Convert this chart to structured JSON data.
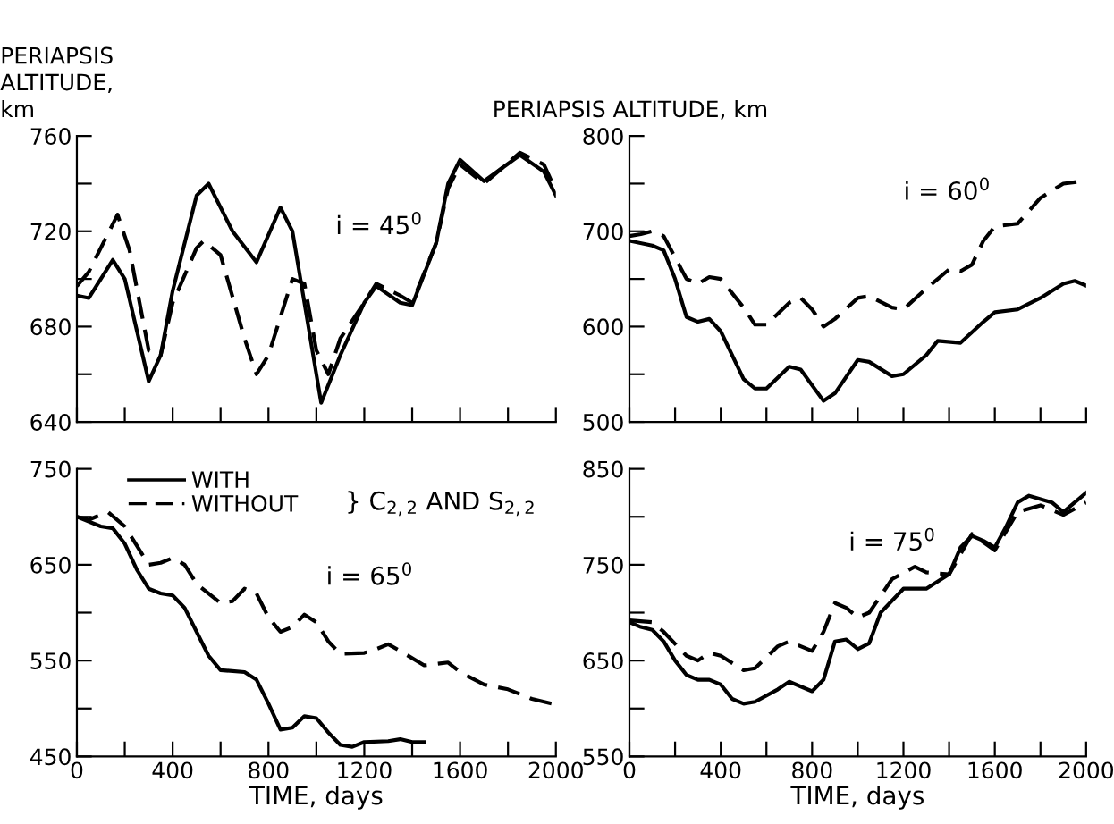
{
  "chart_data": [
    {
      "type": "line",
      "ylabel": "PERIAPSIS\nALTITUDE,\nkm",
      "annotations": [
        "i = 45$^{0}$"
      ],
      "xlim": [
        0,
        2000
      ],
      "ylim": [
        640,
        760
      ],
      "xticks": [
        0,
        200,
        400,
        600,
        800,
        1000,
        1200,
        1400,
        1600,
        1800,
        2000
      ],
      "yticks": [
        640,
        {
          "value": 660,
          "label": null
        },
        680,
        {
          "value": 700,
          "label": null
        },
        720,
        {
          "value": 740,
          "label": null
        },
        760
      ],
      "tick_labels": "y",
      "grid": false,
      "legend": false,
      "series": [
        {
          "color": "#000000",
          "line_style": "solid",
          "x": [
            0,
            50,
            150,
            200,
            300,
            350,
            400,
            500,
            550,
            650,
            750,
            850,
            900,
            1000,
            1020,
            1100,
            1200,
            1250,
            1350,
            1400,
            1500,
            1550,
            1600,
            1700,
            1850,
            1950,
            2000
          ],
          "values": [
            693,
            692,
            708,
            700,
            657,
            668,
            695,
            735,
            740,
            720,
            707,
            730,
            720,
            660,
            648,
            668,
            690,
            697,
            690,
            689,
            715,
            740,
            750,
            741,
            752,
            745,
            735
          ]
        },
        {
          "color": "#000000",
          "line_style": "dashed",
          "x": [
            0,
            50,
            170,
            220,
            300,
            350,
            400,
            500,
            530,
            600,
            700,
            750,
            800,
            900,
            950,
            1000,
            1050,
            1100,
            1200,
            1250,
            1350,
            1400,
            1500,
            1550,
            1600,
            1700,
            1850,
            1950,
            2000
          ],
          "values": [
            697,
            703,
            727,
            712,
            670,
            668,
            690,
            713,
            716,
            710,
            675,
            660,
            668,
            700,
            698,
            670,
            660,
            675,
            690,
            698,
            693,
            690,
            715,
            738,
            748,
            740,
            753,
            748,
            737
          ]
        }
      ]
    },
    {
      "type": "line",
      "ylabel": "PERIAPSIS ALTITUDE, km",
      "annotations": [
        "i = 60$^{0}$"
      ],
      "xlim": [
        0,
        2000
      ],
      "ylim": [
        500,
        800
      ],
      "xticks": [
        0,
        200,
        400,
        600,
        800,
        1000,
        1200,
        1400,
        1600,
        1800,
        2000
      ],
      "yticks": [
        500,
        {
          "value": 550,
          "label": null
        },
        600,
        {
          "value": 650,
          "label": null
        },
        700,
        {
          "value": 750,
          "label": null
        },
        800
      ],
      "tick_labels": "y",
      "grid": false,
      "legend": false,
      "series": [
        {
          "color": "#000000",
          "line_style": "solid",
          "x": [
            0,
            100,
            150,
            200,
            250,
            300,
            350,
            400,
            500,
            550,
            600,
            700,
            750,
            850,
            900,
            1000,
            1050,
            1150,
            1200,
            1300,
            1350,
            1450,
            1550,
            1600,
            1700,
            1800,
            1900,
            1950,
            2000
          ],
          "values": [
            690,
            685,
            680,
            650,
            610,
            605,
            608,
            595,
            545,
            535,
            535,
            558,
            555,
            522,
            530,
            565,
            563,
            548,
            550,
            570,
            585,
            583,
            605,
            615,
            618,
            630,
            645,
            648,
            643
          ]
        },
        {
          "color": "#000000",
          "line_style": "dashed",
          "x": [
            0,
            50,
            100,
            150,
            250,
            300,
            350,
            400,
            500,
            550,
            600,
            700,
            750,
            800,
            850,
            900,
            1000,
            1050,
            1150,
            1200,
            1300,
            1400,
            1450,
            1500,
            1550,
            1600,
            1700,
            1800,
            1900,
            2000
          ],
          "values": [
            695,
            697,
            700,
            695,
            650,
            645,
            652,
            650,
            620,
            602,
            602,
            625,
            630,
            618,
            600,
            608,
            630,
            632,
            620,
            618,
            640,
            660,
            658,
            665,
            690,
            705,
            708,
            735,
            750,
            753
          ]
        }
      ]
    },
    {
      "type": "line",
      "xlabel": "TIME, days",
      "annotations": [
        "} C$_{2,2}$ AND S$_{2,2}$",
        "i = 65$^{0}$"
      ],
      "xlim": [
        0,
        2000
      ],
      "ylim": [
        450,
        750
      ],
      "xticks": [
        0,
        {
          "value": 200,
          "label": null
        },
        400,
        {
          "value": 600,
          "label": null
        },
        800,
        {
          "value": 1000,
          "label": null
        },
        1200,
        {
          "value": 1400,
          "label": null
        },
        1600,
        {
          "value": 1800,
          "label": null
        },
        2000
      ],
      "yticks": [
        450,
        {
          "value": 500,
          "label": null
        },
        550,
        {
          "value": 600,
          "label": null
        },
        650,
        {
          "value": 700,
          "label": null
        },
        750
      ],
      "grid": false,
      "legend": "top",
      "series": [
        {
          "name": "WITH",
          "color": "#000000",
          "line_style": "solid",
          "x": [
            0,
            100,
            150,
            200,
            250,
            300,
            350,
            400,
            450,
            500,
            550,
            600,
            700,
            750,
            800,
            850,
            900,
            950,
            1000,
            1050,
            1100,
            1150,
            1200,
            1300,
            1350,
            1400,
            1450
          ],
          "values": [
            700,
            690,
            688,
            672,
            645,
            625,
            620,
            618,
            605,
            580,
            555,
            540,
            538,
            530,
            505,
            478,
            480,
            492,
            490,
            475,
            462,
            460,
            465,
            466,
            468,
            465,
            465
          ]
        },
        {
          "name": "WITHOUT",
          "color": "#000000",
          "line_style": "dashed",
          "x": [
            0,
            50,
            130,
            200,
            250,
            300,
            350,
            400,
            450,
            500,
            600,
            650,
            700,
            750,
            800,
            850,
            900,
            950,
            1000,
            1050,
            1100,
            1200,
            1250,
            1300,
            1350,
            1450,
            1550,
            1600,
            1700,
            1800,
            1900,
            2000
          ],
          "values": [
            700,
            697,
            705,
            690,
            670,
            650,
            652,
            657,
            650,
            630,
            610,
            612,
            625,
            620,
            595,
            580,
            585,
            598,
            590,
            570,
            557,
            558,
            562,
            567,
            560,
            545,
            548,
            538,
            525,
            520,
            510,
            504
          ]
        }
      ]
    },
    {
      "type": "line",
      "xlabel": "TIME, days",
      "annotations": [
        "i = 75$^{0}$"
      ],
      "xlim": [
        0,
        2000
      ],
      "ylim": [
        550,
        850
      ],
      "xticks": [
        0,
        {
          "value": 200,
          "label": null
        },
        400,
        {
          "value": 600,
          "label": null
        },
        800,
        {
          "value": 1000,
          "label": null
        },
        1200,
        {
          "value": 1400,
          "label": null
        },
        1600,
        {
          "value": 1800,
          "label": null
        },
        2000
      ],
      "yticks": [
        550,
        {
          "value": 600,
          "label": null
        },
        650,
        {
          "value": 700,
          "label": null
        },
        750,
        {
          "value": 800,
          "label": null
        },
        850
      ],
      "grid": false,
      "legend": false,
      "series": [
        {
          "color": "#000000",
          "line_style": "solid",
          "x": [
            0,
            50,
            100,
            150,
            200,
            250,
            300,
            350,
            400,
            450,
            500,
            550,
            650,
            700,
            800,
            850,
            900,
            950,
            1000,
            1050,
            1100,
            1200,
            1300,
            1400,
            1450,
            1500,
            1550,
            1600,
            1650,
            1700,
            1750,
            1850,
            1900,
            2000
          ],
          "values": [
            690,
            685,
            682,
            670,
            650,
            635,
            630,
            630,
            625,
            610,
            605,
            607,
            620,
            628,
            618,
            630,
            670,
            672,
            662,
            668,
            700,
            725,
            725,
            740,
            768,
            780,
            775,
            768,
            790,
            815,
            822,
            815,
            805,
            825
          ]
        },
        {
          "color": "#000000",
          "line_style": "dashed",
          "x": [
            0,
            100,
            150,
            250,
            300,
            350,
            400,
            500,
            550,
            650,
            700,
            750,
            800,
            850,
            900,
            950,
            1000,
            1050,
            1150,
            1250,
            1300,
            1400,
            1500,
            1600,
            1700,
            1800,
            1900,
            2000
          ],
          "values": [
            692,
            690,
            680,
            655,
            650,
            658,
            655,
            640,
            642,
            665,
            670,
            665,
            660,
            680,
            710,
            705,
            695,
            700,
            735,
            748,
            742,
            740,
            782,
            765,
            805,
            812,
            802,
            815
          ]
        }
      ]
    }
  ]
}
